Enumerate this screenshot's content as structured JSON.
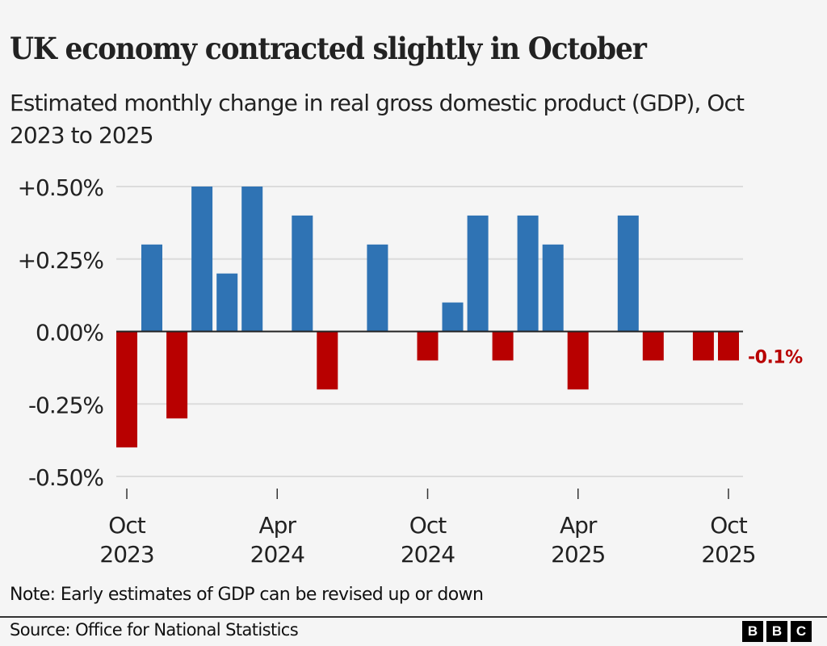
{
  "header": {
    "title": "UK economy contracted slightly in October",
    "subtitle": "Estimated monthly change in real gross domestic product (GDP), Oct 2023 to 2025"
  },
  "footer": {
    "note": "Note: Early estimates of GDP can be revised up or down",
    "source": "Source: Office for National Statistics",
    "logo_letters": [
      "B",
      "B",
      "C"
    ]
  },
  "colors": {
    "positive": "#2f73b4",
    "negative": "#b80000",
    "background": "#f5f5f5",
    "gridline": "#dcdcdc",
    "zero_line": "#222222"
  },
  "chart_data": {
    "type": "bar",
    "title": "UK economy contracted slightly in October",
    "subtitle": "Estimated monthly change in real gross domestic product (GDP), Oct 2023 to 2025",
    "xlabel": "",
    "ylabel": "",
    "ylim": [
      -0.5,
      0.5
    ],
    "yticks": [
      0.5,
      0.25,
      0,
      -0.25,
      -0.5
    ],
    "ytick_labels": [
      "+0.50%",
      "+0.25%",
      "0.00%",
      "-0.25%",
      "-0.50%"
    ],
    "grid": true,
    "categories": [
      "Oct 2023",
      "Nov 2023",
      "Dec 2023",
      "Jan 2024",
      "Feb 2024",
      "Mar 2024",
      "Apr 2024",
      "May 2024",
      "Jun 2024",
      "Jul 2024",
      "Aug 2024",
      "Sep 2024",
      "Oct 2024",
      "Nov 2024",
      "Dec 2024",
      "Jan 2025",
      "Feb 2025",
      "Mar 2025",
      "Apr 2025",
      "May 2025",
      "Jun 2025",
      "Jul 2025",
      "Aug 2025",
      "Sep 2025",
      "Oct 2025"
    ],
    "values": [
      -0.4,
      0.3,
      -0.3,
      0.5,
      0.2,
      0.5,
      0.0,
      0.4,
      -0.2,
      0.0,
      0.3,
      0.0,
      -0.1,
      0.1,
      0.4,
      -0.1,
      0.4,
      0.3,
      -0.2,
      0.0,
      0.4,
      -0.1,
      0.0,
      -0.1,
      -0.1
    ],
    "xticks": [
      {
        "index": 0,
        "line1": "Oct",
        "line2": "2023"
      },
      {
        "index": 6,
        "line1": "Apr",
        "line2": "2024"
      },
      {
        "index": 12,
        "line1": "Oct",
        "line2": "2024"
      },
      {
        "index": 18,
        "line1": "Apr",
        "line2": "2025"
      },
      {
        "index": 24,
        "line1": "Oct",
        "line2": "2025"
      }
    ],
    "annotations": [
      {
        "index": 24,
        "text": "-0.1%"
      }
    ],
    "legend": "none"
  }
}
